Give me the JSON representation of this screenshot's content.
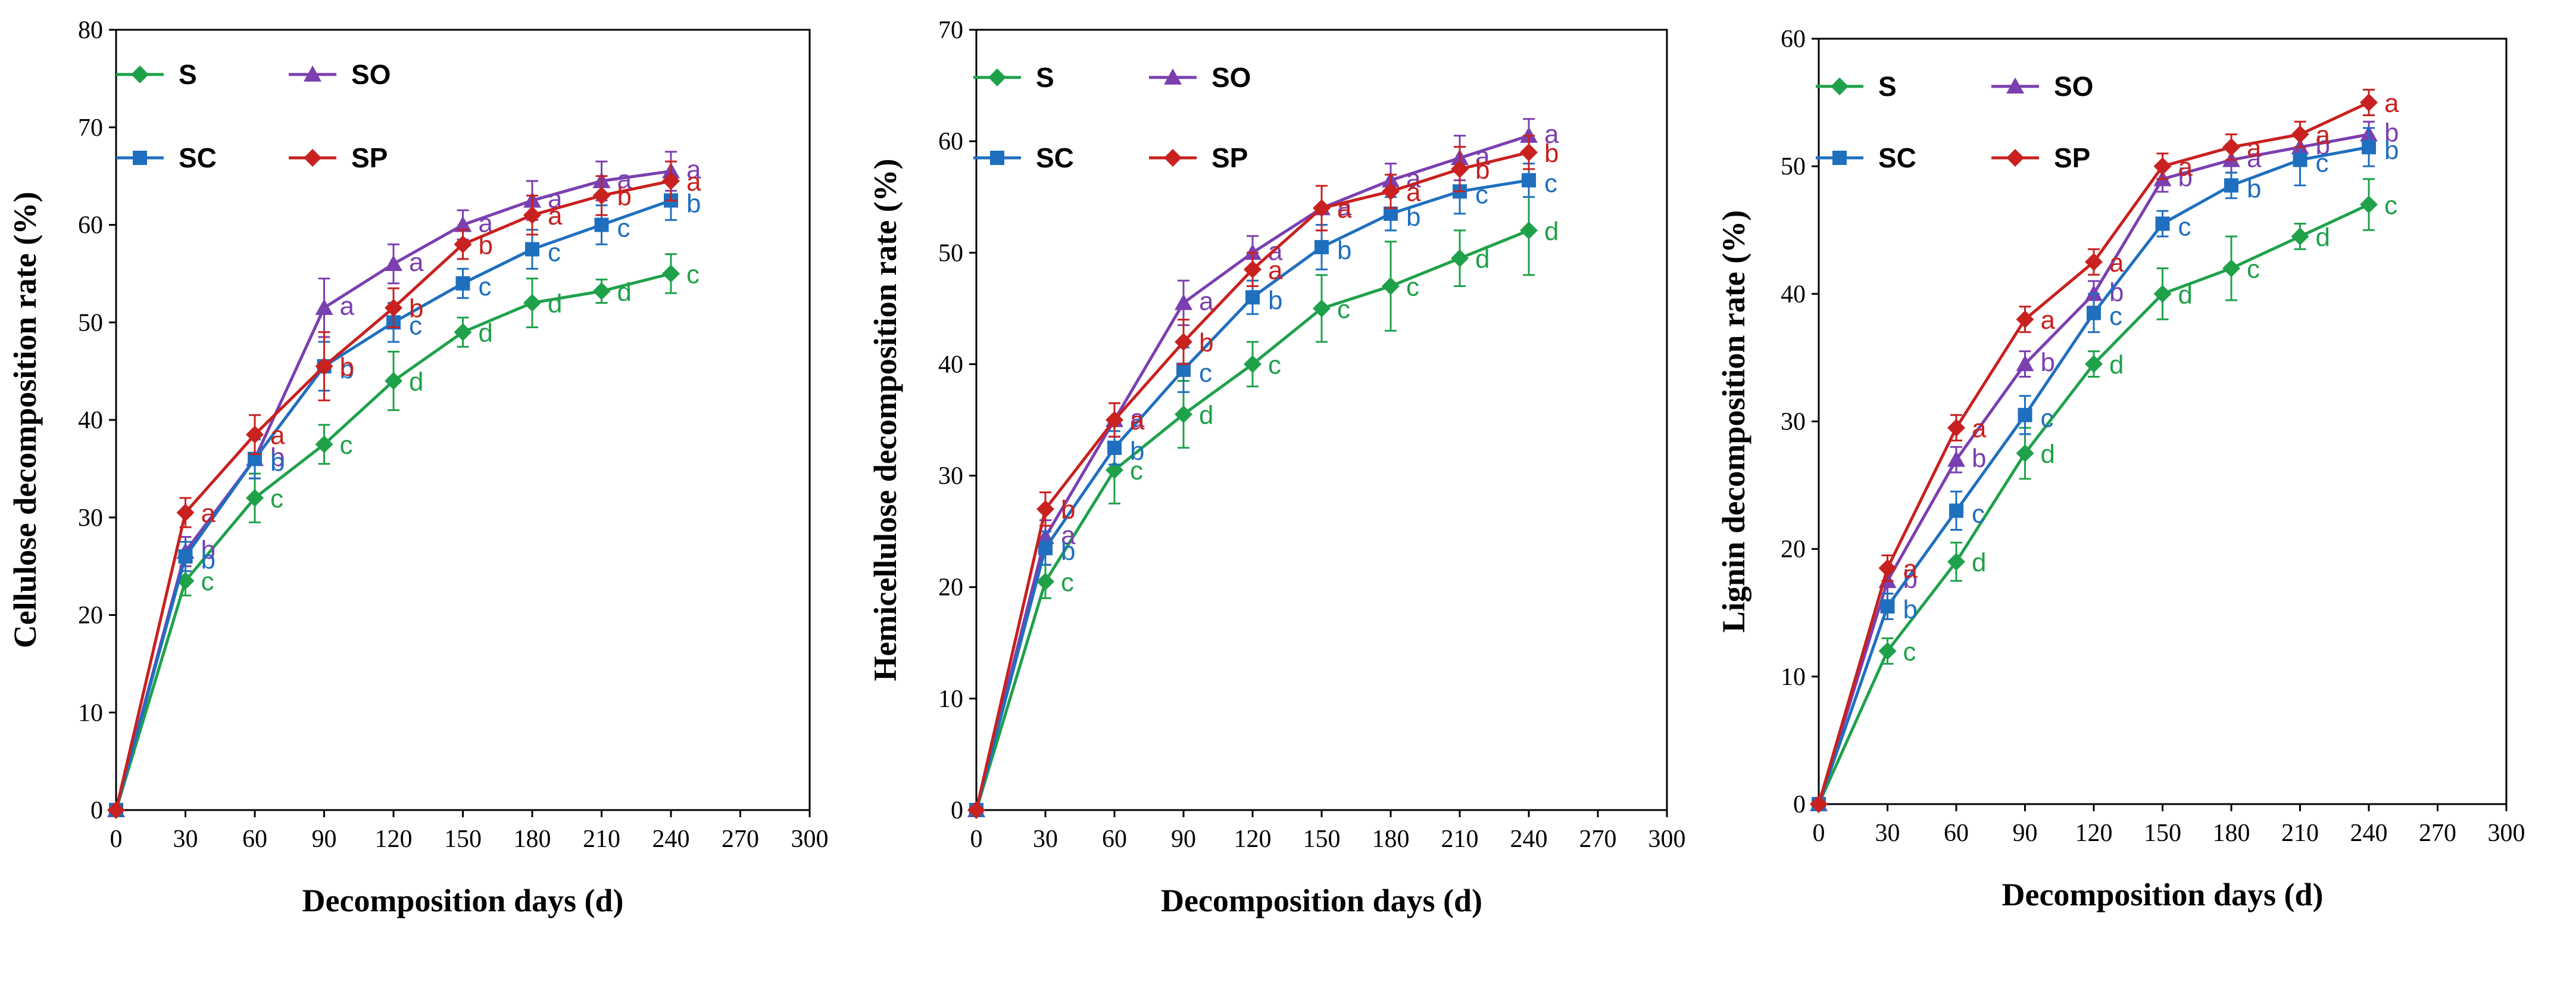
{
  "series_style": {
    "S": {
      "color": "#1fa14a",
      "marker": "diamond"
    },
    "SO": {
      "color": "#7b3fb0",
      "marker": "triangle"
    },
    "SC": {
      "color": "#1f6fbf",
      "marker": "square"
    },
    "SP": {
      "color": "#c8211f",
      "marker": "diamond"
    }
  },
  "chart_data": [
    {
      "type": "line",
      "title": "",
      "xlabel": "Decomposition days (d)",
      "ylabel": "Cellulose decomposition rate (%)",
      "xlim": [
        0,
        300
      ],
      "xticks": [
        0,
        30,
        60,
        90,
        120,
        150,
        180,
        210,
        240,
        270,
        300
      ],
      "ylim": [
        0,
        80
      ],
      "yticks": [
        0,
        10,
        20,
        30,
        40,
        50,
        60,
        70,
        80
      ],
      "x": [
        0,
        30,
        60,
        90,
        120,
        150,
        180,
        210,
        240
      ],
      "legend": [
        "S",
        "SO",
        "SC",
        "SP"
      ],
      "series": [
        {
          "name": "S",
          "values": [
            0,
            23.5,
            32,
            37.5,
            44,
            49,
            52,
            53.2,
            55
          ],
          "errors": [
            0,
            1.5,
            2.5,
            2,
            3,
            1.5,
            2.5,
            1.2,
            2
          ],
          "letters": [
            "",
            "c",
            "c",
            "c",
            "d",
            "d",
            "d",
            "d",
            "c"
          ]
        },
        {
          "name": "SO",
          "values": [
            0,
            26.5,
            36,
            51.5,
            56,
            60,
            62.5,
            64.5,
            65.5
          ],
          "errors": [
            0,
            1.5,
            2,
            3,
            2,
            1.5,
            2,
            2,
            2
          ],
          "letters": [
            "",
            "b",
            "b",
            "a",
            "a",
            "a",
            "a",
            "a",
            "a"
          ]
        },
        {
          "name": "SC",
          "values": [
            0,
            26,
            36,
            45.5,
            50,
            54,
            57.5,
            60,
            62.5
          ],
          "errors": [
            0,
            1.5,
            2,
            2.5,
            2,
            1.5,
            2,
            2,
            2
          ],
          "letters": [
            "",
            "b",
            "b",
            "b",
            "c",
            "c",
            "c",
            "c",
            "b"
          ]
        },
        {
          "name": "SP",
          "values": [
            0,
            30.5,
            38.5,
            45.5,
            51.5,
            58,
            61,
            63,
            64.5
          ],
          "errors": [
            0,
            1.5,
            2,
            3.5,
            2,
            1.5,
            2,
            2,
            2
          ],
          "letters": [
            "",
            "a",
            "a",
            "b",
            "b",
            "b",
            "a",
            "b",
            "a"
          ]
        }
      ]
    },
    {
      "type": "line",
      "title": "",
      "xlabel": "Decomposition days (d)",
      "ylabel": "Hemicellulose decomposition rate (%)",
      "xlim": [
        0,
        300
      ],
      "xticks": [
        0,
        30,
        60,
        90,
        120,
        150,
        180,
        210,
        240,
        270,
        300
      ],
      "ylim": [
        0,
        70
      ],
      "yticks": [
        0,
        10,
        20,
        30,
        40,
        50,
        60,
        70
      ],
      "x": [
        0,
        30,
        60,
        90,
        120,
        150,
        180,
        210,
        240
      ],
      "legend": [
        "S",
        "SO",
        "SC",
        "SP"
      ],
      "series": [
        {
          "name": "S",
          "values": [
            0,
            20.5,
            30.5,
            35.5,
            40,
            45,
            47,
            49.5,
            52
          ],
          "errors": [
            0,
            1.5,
            3,
            3,
            2,
            3,
            4,
            2.5,
            4
          ],
          "letters": [
            "",
            "c",
            "c",
            "d",
            "c",
            "c",
            "c",
            "d",
            "d"
          ]
        },
        {
          "name": "SO",
          "values": [
            0,
            24.5,
            35,
            45.5,
            50,
            54,
            56.5,
            58.5,
            60.5
          ],
          "errors": [
            0,
            1.5,
            1.5,
            2,
            1.5,
            2,
            1.5,
            2,
            1.5
          ],
          "letters": [
            "",
            "a",
            "a",
            "a",
            "a",
            "a",
            "a",
            "a",
            "a"
          ]
        },
        {
          "name": "SC",
          "values": [
            0,
            23.5,
            32.5,
            39.5,
            46,
            50.5,
            53.5,
            55.5,
            56.5
          ],
          "errors": [
            0,
            1.5,
            1.5,
            2,
            1.5,
            2,
            1.5,
            2,
            1.5
          ],
          "letters": [
            "",
            "b",
            "b",
            "c",
            "b",
            "b",
            "b",
            "c",
            "c"
          ]
        },
        {
          "name": "SP",
          "values": [
            0,
            27,
            35,
            42,
            48.5,
            54,
            55.5,
            57.5,
            59
          ],
          "errors": [
            0,
            1.5,
            1.5,
            2,
            1.5,
            2,
            1.5,
            2,
            1.5
          ],
          "letters": [
            "",
            "b",
            "a",
            "b",
            "a",
            "a",
            "a",
            "b",
            "b"
          ]
        }
      ]
    },
    {
      "type": "line",
      "title": "",
      "xlabel": "Decomposition days (d)",
      "ylabel": "Lignin decomposition rate (%)",
      "xlim": [
        0,
        300
      ],
      "xticks": [
        0,
        30,
        60,
        90,
        120,
        150,
        180,
        210,
        240,
        270,
        300
      ],
      "ylim": [
        0,
        60
      ],
      "yticks": [
        0,
        10,
        20,
        30,
        40,
        50,
        60
      ],
      "x": [
        0,
        30,
        60,
        90,
        120,
        150,
        180,
        210,
        240
      ],
      "legend": [
        "S",
        "SO",
        "SC",
        "SP"
      ],
      "series": [
        {
          "name": "S",
          "values": [
            0,
            12,
            19,
            27.5,
            34.5,
            40,
            42,
            44.5,
            47
          ],
          "errors": [
            0,
            1,
            1.5,
            2,
            1,
            2,
            2.5,
            1,
            2
          ],
          "letters": [
            "",
            "c",
            "d",
            "d",
            "d",
            "d",
            "c",
            "d",
            "c"
          ]
        },
        {
          "name": "SO",
          "values": [
            0,
            17.5,
            27,
            34.5,
            40,
            49,
            50.5,
            51.5,
            52.5
          ],
          "errors": [
            0,
            1,
            1,
            1,
            1,
            1,
            1,
            1,
            1
          ],
          "letters": [
            "",
            "b",
            "b",
            "b",
            "b",
            "b",
            "a",
            "b",
            "b"
          ]
        },
        {
          "name": "SC",
          "values": [
            0,
            15.5,
            23,
            30.5,
            38.5,
            45.5,
            48.5,
            50.5,
            51.5
          ],
          "errors": [
            0,
            1,
            1.5,
            1.5,
            1.5,
            1,
            1,
            2,
            1.5
          ],
          "letters": [
            "",
            "b",
            "c",
            "c",
            "c",
            "c",
            "b",
            "c",
            "b"
          ]
        },
        {
          "name": "SP",
          "values": [
            0,
            18.5,
            29.5,
            38,
            42.5,
            50,
            51.5,
            52.5,
            55
          ],
          "errors": [
            0,
            1,
            1,
            1,
            1,
            1,
            1,
            1,
            1
          ],
          "letters": [
            "",
            "a",
            "a",
            "a",
            "a",
            "a",
            "a",
            "a",
            "a"
          ]
        }
      ]
    }
  ]
}
